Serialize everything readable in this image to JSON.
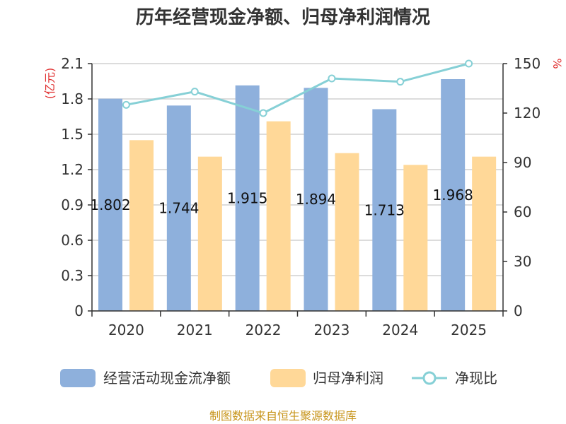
{
  "chart_data": {
    "type": "bar+line",
    "title": "历年经营现金净额、归母净利润情况",
    "categories": [
      "2020",
      "2021",
      "2022",
      "2023",
      "2024",
      "2025"
    ],
    "series": [
      {
        "name": "经营活动现金流净额",
        "type": "bar",
        "axis": "left",
        "color": "#8eb0dc",
        "values": [
          1.802,
          1.744,
          1.915,
          1.894,
          1.713,
          1.968
        ],
        "data_labels": [
          "1.802",
          "1.744",
          "1.915",
          "1.894",
          "1.713",
          "1.968"
        ]
      },
      {
        "name": "归母净利润",
        "type": "bar",
        "axis": "left",
        "color": "#ffd898",
        "values": [
          1.45,
          1.31,
          1.61,
          1.34,
          1.24,
          1.31
        ]
      },
      {
        "name": "净现比",
        "type": "line",
        "axis": "right",
        "color": "#86d0d6",
        "values": [
          125,
          133,
          120,
          141,
          139,
          150
        ]
      }
    ],
    "y_left": {
      "unit": "(亿元)",
      "range": [
        0,
        2.1
      ],
      "ticks": [
        "0",
        "0.3",
        "0.6",
        "0.9",
        "1.2",
        "1.5",
        "1.8",
        "2.1"
      ]
    },
    "y_right": {
      "unit": "%",
      "range": [
        0,
        150
      ],
      "ticks": [
        "0",
        "30",
        "60",
        "90",
        "120",
        "150"
      ]
    },
    "grid": true,
    "legend_position": "bottom"
  },
  "colors": {
    "unit_label": "#e03030",
    "source_text": "#c8961e",
    "grid": "#d0d0d0",
    "axis": "#333333"
  },
  "source": "制图数据来自恒生聚源数据库"
}
